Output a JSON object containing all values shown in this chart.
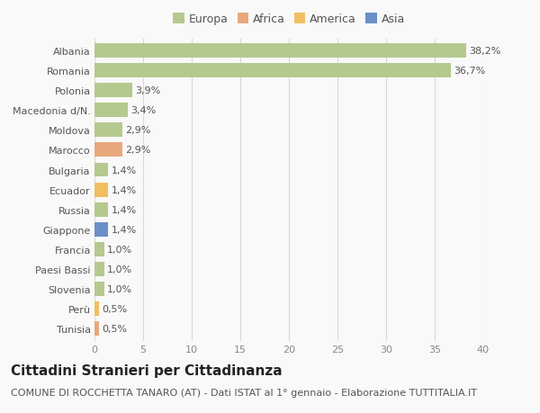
{
  "countries": [
    "Albania",
    "Romania",
    "Polonia",
    "Macedonia d/N.",
    "Moldova",
    "Marocco",
    "Bulgaria",
    "Ecuador",
    "Russia",
    "Giappone",
    "Francia",
    "Paesi Bassi",
    "Slovenia",
    "Perù",
    "Tunisia"
  ],
  "values": [
    38.2,
    36.7,
    3.9,
    3.4,
    2.9,
    2.9,
    1.4,
    1.4,
    1.4,
    1.4,
    1.0,
    1.0,
    1.0,
    0.5,
    0.5
  ],
  "labels": [
    "38,2%",
    "36,7%",
    "3,9%",
    "3,4%",
    "2,9%",
    "2,9%",
    "1,4%",
    "1,4%",
    "1,4%",
    "1,4%",
    "1,0%",
    "1,0%",
    "1,0%",
    "0,5%",
    "0,5%"
  ],
  "colors": [
    "#b5c98e",
    "#b5c98e",
    "#b5c98e",
    "#b5c98e",
    "#b5c98e",
    "#e8a87c",
    "#b5c98e",
    "#f0c060",
    "#b5c98e",
    "#6a8fc8",
    "#b5c98e",
    "#b5c98e",
    "#b5c98e",
    "#f0c060",
    "#e8a87c"
  ],
  "legend_labels": [
    "Europa",
    "Africa",
    "America",
    "Asia"
  ],
  "legend_colors": [
    "#b5c98e",
    "#e8a87c",
    "#f0c060",
    "#6a8fc8"
  ],
  "title": "Cittadini Stranieri per Cittadinanza",
  "subtitle": "COMUNE DI ROCCHETTA TANARO (AT) - Dati ISTAT al 1° gennaio - Elaborazione TUTTITALIA.IT",
  "xlim": [
    0,
    40
  ],
  "xticks": [
    0,
    5,
    10,
    15,
    20,
    25,
    30,
    35,
    40
  ],
  "background_color": "#f9f9f9",
  "grid_color": "#d8d8d8",
  "bar_height": 0.72,
  "title_fontsize": 11,
  "subtitle_fontsize": 8,
  "label_fontsize": 8,
  "tick_fontsize": 8,
  "legend_fontsize": 9
}
